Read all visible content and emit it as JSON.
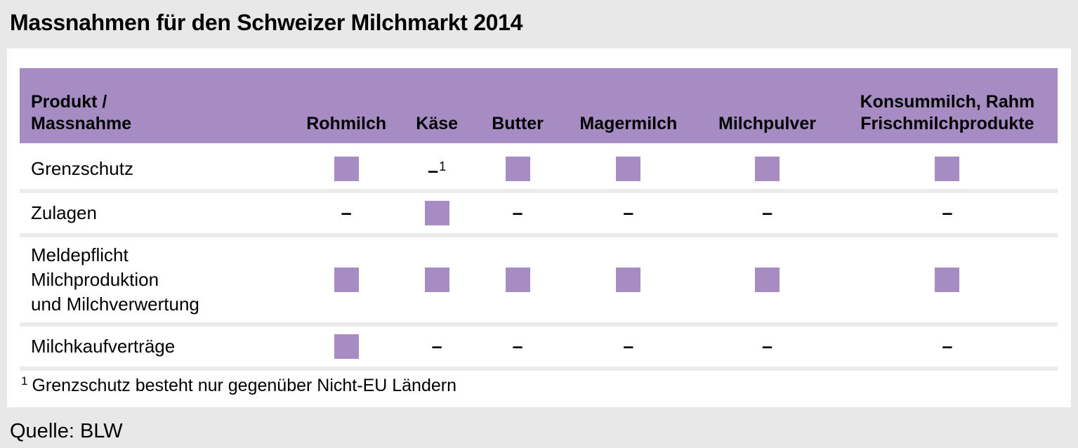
{
  "page": {
    "title": "Massnahmen für den Schweizer Milchmarkt 2014",
    "source": "Quelle: BLW"
  },
  "colors": {
    "accent_purple": "#a68cc2",
    "page_background": "#e8e8e8",
    "card_background": "#ffffff",
    "row_separator": "#ebebeb",
    "text": "#000000"
  },
  "symbols": {
    "dash": "–"
  },
  "chart_data": {
    "type": "table",
    "title": "Massnahmen für den Schweizer Milchmarkt 2014",
    "corner_header": "Produkt / Massnahme",
    "corner_header_lines": [
      "Produkt /",
      "Massnahme"
    ],
    "columns": [
      {
        "label": "Rohmilch",
        "lines": [
          "Rohmilch"
        ]
      },
      {
        "label": "Käse",
        "lines": [
          "Käse"
        ]
      },
      {
        "label": "Butter",
        "lines": [
          "Butter"
        ]
      },
      {
        "label": "Magermilch",
        "lines": [
          "Magermilch"
        ]
      },
      {
        "label": "Milchpulver",
        "lines": [
          "Milchpulver"
        ]
      },
      {
        "label": "Konsummilch, Rahm Frischmilchprodukte",
        "lines": [
          "Konsummilch, Rahm",
          "Frischmilchprodukte"
        ]
      }
    ],
    "rows": [
      {
        "label": "Grenzschutz",
        "lines": [
          "Grenzschutz"
        ],
        "cells": [
          "square",
          "dash_footnote",
          "square",
          "square",
          "square",
          "square"
        ]
      },
      {
        "label": "Zulagen",
        "lines": [
          "Zulagen"
        ],
        "cells": [
          "dash",
          "square",
          "dash",
          "dash",
          "dash",
          "dash"
        ]
      },
      {
        "label": "Meldepflicht Milchproduktion und Milchverwertung",
        "lines": [
          "Meldepflicht",
          "Milchproduktion",
          "und Milchverwertung"
        ],
        "cells": [
          "square",
          "square",
          "square",
          "square",
          "square",
          "square"
        ]
      },
      {
        "label": "Milchkaufverträge",
        "lines": [
          "Milchkaufverträge"
        ],
        "cells": [
          "square",
          "dash",
          "dash",
          "dash",
          "dash",
          "dash"
        ]
      }
    ],
    "footnote": {
      "marker": "1",
      "text": "Grenzschutz besteht nur gegenüber Nicht-EU Ländern"
    },
    "source": "Quelle: BLW"
  }
}
